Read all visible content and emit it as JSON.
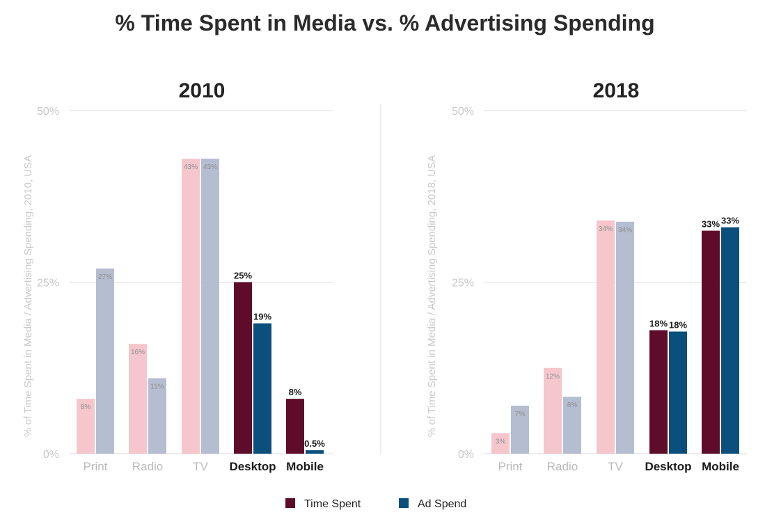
{
  "title": "% Time Spent in Media vs. % Advertising Spending",
  "legend": [
    {
      "name": "Time Spent",
      "color": "#5e0c29"
    },
    {
      "name": "Ad Spend",
      "color": "#0b4f7c"
    }
  ],
  "colors": {
    "time_light": "#f5c6cc",
    "ad_light": "#b5bdd1",
    "time_dark": "#5e0c29",
    "ad_dark": "#0b4f7c",
    "grid": "#dedede",
    "cat_light": "#b9b9b9",
    "cat_dark": "#1a1a1a"
  },
  "chart_data": [
    {
      "type": "bar",
      "title": "2010",
      "ylabel": "% of Time Spent in Media / Advertising Spending, 2010, USA",
      "ylim": [
        0,
        50
      ],
      "yticks": [
        "0%",
        "25%",
        "50%"
      ],
      "categories": [
        "Print",
        "Radio",
        "TV",
        "Desktop",
        "Mobile"
      ],
      "highlight": [
        false,
        false,
        false,
        true,
        true
      ],
      "series": [
        {
          "name": "Time Spent",
          "values": [
            8,
            16,
            43,
            25,
            8
          ],
          "labels": [
            "8%",
            "16%",
            "43%",
            "25%",
            "8%"
          ]
        },
        {
          "name": "Ad Spend",
          "values": [
            27,
            11,
            43,
            19,
            0.5
          ],
          "labels": [
            "27%",
            "11%",
            "43%",
            "19%",
            "0.5%"
          ]
        }
      ]
    },
    {
      "type": "bar",
      "title": "2018",
      "ylabel": "% of Time Spent in Media / Advertising Spending, 2018, USA",
      "ylim": [
        0,
        50
      ],
      "yticks": [
        "0%",
        "25%",
        "50%"
      ],
      "categories": [
        "Print",
        "Radio",
        "TV",
        "Desktop",
        "Mobile"
      ],
      "highlight": [
        false,
        false,
        false,
        true,
        true
      ],
      "series": [
        {
          "name": "Time Spent",
          "values": [
            3,
            12.5,
            34,
            18,
            32.5
          ],
          "labels": [
            "3%",
            "12%",
            "34%",
            "18%",
            "33%"
          ]
        },
        {
          "name": "Ad Spend",
          "values": [
            7,
            8.3,
            33.8,
            17.8,
            33
          ],
          "labels": [
            "7%",
            "8%",
            "34%",
            "18%",
            "33%"
          ]
        }
      ]
    }
  ]
}
